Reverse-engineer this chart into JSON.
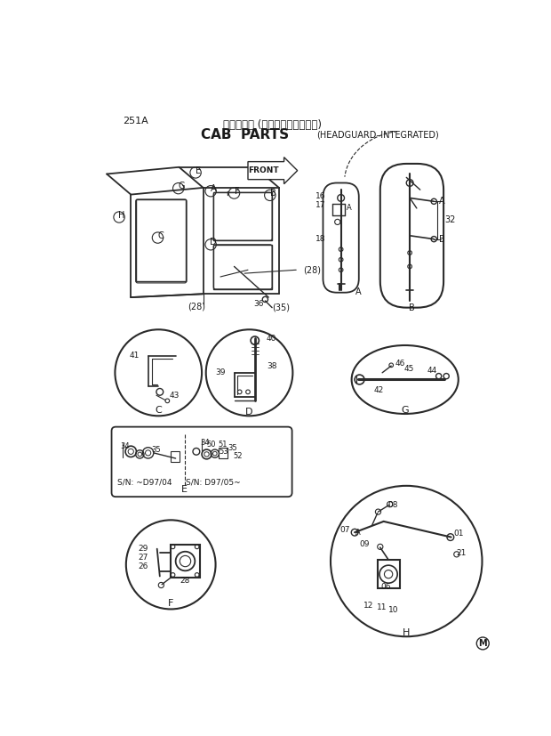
{
  "page_id": "251A",
  "title_japanese": "キャブ部品 (ヘッドガード一体型)",
  "title_english": "CAB  PARTS",
  "title_subtitle": "(HEADGUARD–INTEGRATED)",
  "copyright_mark": "M",
  "bg_color": "#ffffff",
  "line_color": "#2a2a2a",
  "text_color": "#1a1a1a",
  "fig_width": 6.2,
  "fig_height": 8.27,
  "dpi": 100
}
